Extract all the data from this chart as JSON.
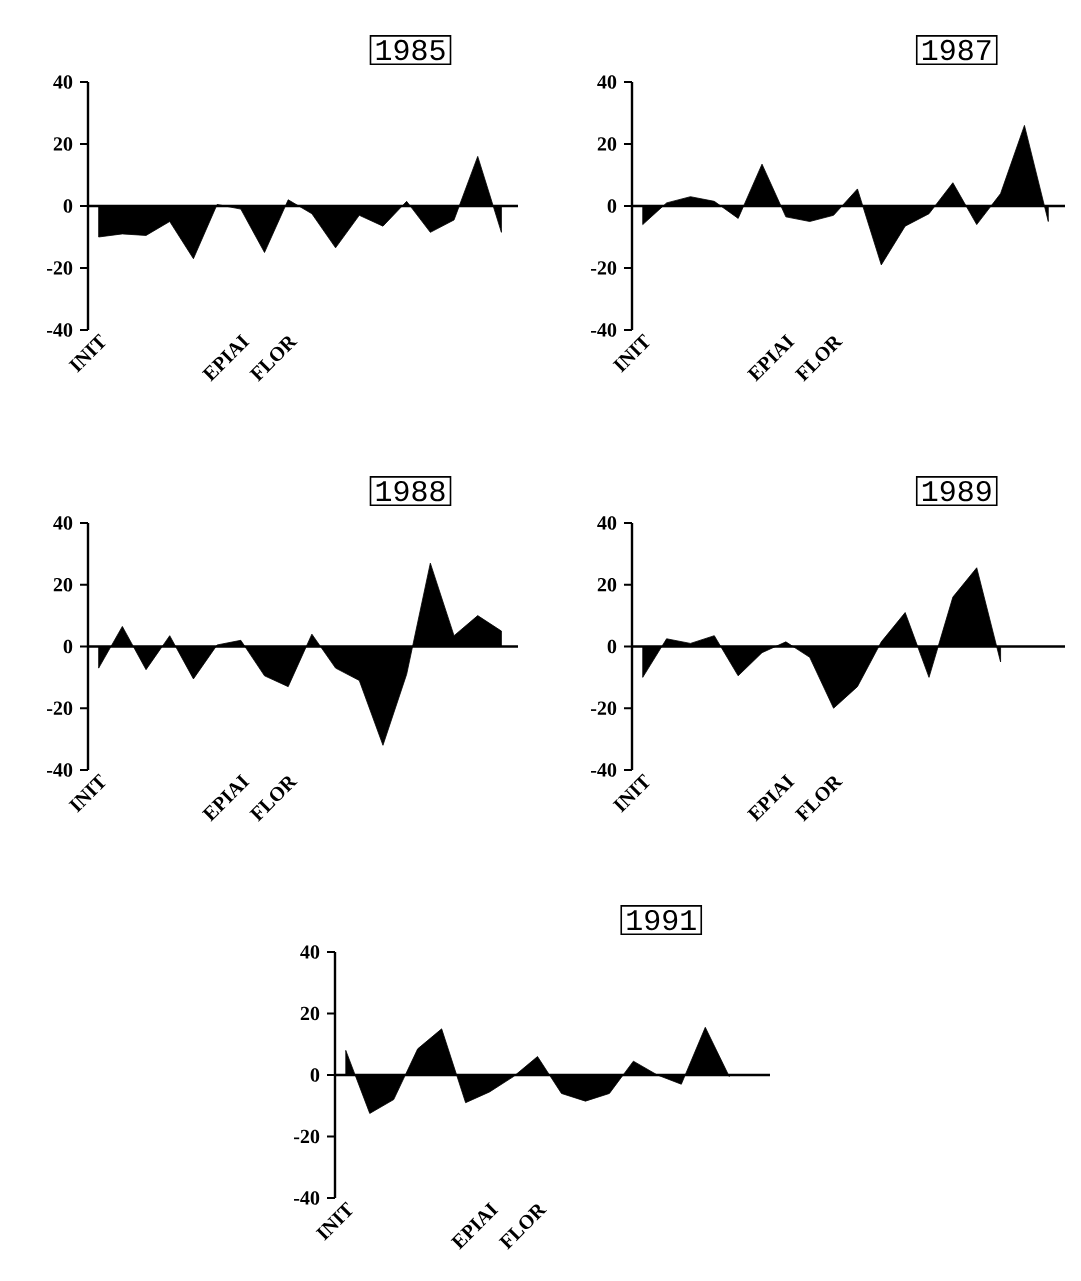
{
  "chart_data": [
    {
      "type": "area",
      "title": "1985",
      "color": "#000000",
      "ylim": [
        -40,
        40
      ],
      "yticks": [
        -40,
        -20,
        0,
        20,
        40
      ],
      "categories": [
        "INIT",
        null,
        null,
        null,
        null,
        null,
        "EPIAI",
        null,
        "FLOR",
        null,
        null,
        null,
        null,
        null,
        null,
        null,
        null,
        null
      ],
      "values": [
        -10,
        -9,
        -9.5,
        -5,
        -17,
        0.5,
        -1,
        -15,
        2,
        -2.5,
        -13.5,
        -3,
        -6.5,
        1.5,
        -8.5,
        -4.5,
        16,
        -8.5
      ]
    },
    {
      "type": "area",
      "title": "1987",
      "color": "#000000",
      "ylim": [
        -40,
        40
      ],
      "yticks": [
        -40,
        -20,
        0,
        20,
        40
      ],
      "categories": [
        "INIT",
        null,
        null,
        null,
        null,
        null,
        "EPIAI",
        null,
        "FLOR",
        null,
        null,
        null,
        null,
        null,
        null,
        null,
        null,
        null
      ],
      "values": [
        -6,
        1,
        3,
        1.5,
        -4,
        13.5,
        -3.5,
        -5,
        -3,
        5.5,
        -19,
        -6.5,
        -2.5,
        7.5,
        -6,
        4,
        26,
        -5
      ]
    },
    {
      "type": "area",
      "title": "1988",
      "color": "#000000",
      "ylim": [
        -40,
        40
      ],
      "yticks": [
        -40,
        -20,
        0,
        20,
        40
      ],
      "categories": [
        "INIT",
        null,
        null,
        null,
        null,
        null,
        "EPIAI",
        null,
        "FLOR",
        null,
        null,
        null,
        null,
        null,
        null,
        null,
        null,
        null
      ],
      "values": [
        -7,
        6.5,
        -7.5,
        3.5,
        -10.5,
        0.5,
        2,
        -9.5,
        -13,
        4,
        -7,
        -11,
        -32,
        -9,
        27,
        3.5,
        10,
        5
      ]
    },
    {
      "type": "area",
      "title": "1989",
      "color": "#000000",
      "ylim": [
        -40,
        40
      ],
      "yticks": [
        -40,
        -20,
        0,
        20,
        40
      ],
      "categories": [
        "INIT",
        null,
        null,
        null,
        null,
        null,
        "EPIAI",
        null,
        "FLOR",
        null,
        null,
        null,
        null,
        null,
        null,
        null,
        null,
        null
      ],
      "values": [
        -10,
        2.5,
        1,
        3.5,
        -9.5,
        -2,
        1.5,
        -3.5,
        -20,
        -13,
        1.5,
        11,
        -10,
        16,
        25.5,
        -5,
        null,
        null
      ]
    },
    {
      "type": "area",
      "title": "1991",
      "color": "#000000",
      "ylim": [
        -40,
        40
      ],
      "yticks": [
        -40,
        -20,
        0,
        20,
        40
      ],
      "categories": [
        "INIT",
        null,
        null,
        null,
        null,
        null,
        "EPIAI",
        null,
        "FLOR",
        null,
        null,
        null,
        null,
        null,
        null,
        null,
        null,
        null
      ],
      "values": [
        8,
        -12.5,
        -8,
        8.5,
        15,
        -9,
        -5.5,
        -0.5,
        6,
        -6,
        -8.5,
        -6,
        4.5,
        0,
        -3,
        15.5,
        -0.5,
        null
      ]
    }
  ]
}
